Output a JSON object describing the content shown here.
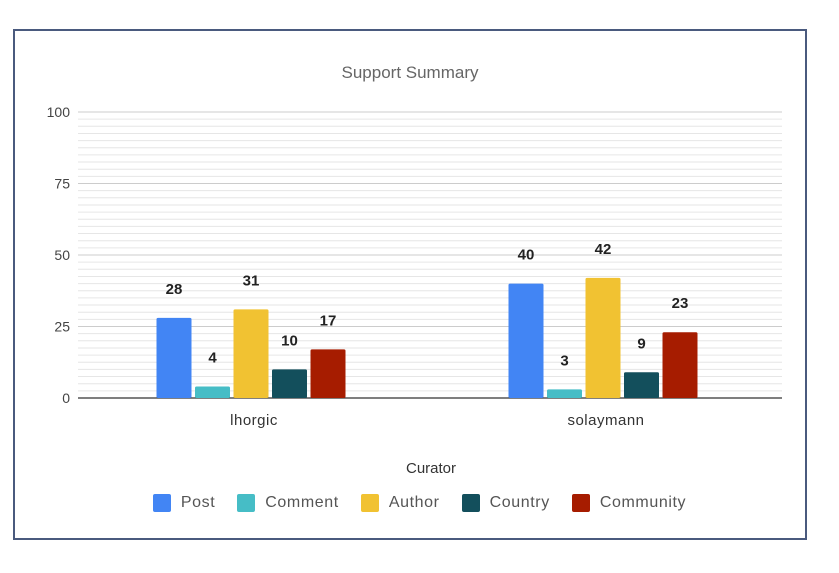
{
  "chart_data": {
    "type": "bar",
    "title": "Support Summary",
    "xlabel": "Curator",
    "ylabel": "",
    "ylim": [
      0,
      100
    ],
    "yticks": [
      0,
      25,
      50,
      75,
      100
    ],
    "categories": [
      "lhorgic",
      "solaymann"
    ],
    "series": [
      {
        "name": "Post",
        "values": [
          28,
          40
        ],
        "color": "#4285f4"
      },
      {
        "name": "Comment",
        "values": [
          4,
          3
        ],
        "color": "#46bdc6"
      },
      {
        "name": "Author",
        "values": [
          31,
          42
        ],
        "color": "#f1c232"
      },
      {
        "name": "Country",
        "values": [
          10,
          9
        ],
        "color": "#134f5c"
      },
      {
        "name": "Community",
        "values": [
          17,
          23
        ],
        "color": "#a61c00"
      }
    ],
    "grid": true,
    "legend_position": "bottom"
  }
}
